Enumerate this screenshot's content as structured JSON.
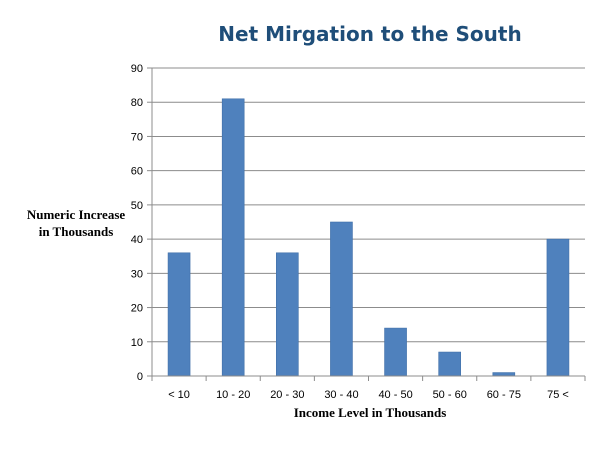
{
  "chart_data": {
    "type": "bar",
    "title": "Net Mirgation to the South",
    "xlabel": "Income Level in Thousands",
    "ylabel": "Numeric Increase in Thousands",
    "ylabel_lines": [
      "Numeric Increase",
      "in Thousands"
    ],
    "categories": [
      "< 10",
      "10 - 20",
      "20 - 30",
      "30 - 40",
      "40 - 50",
      "50 - 60",
      "60 - 75",
      "75 <"
    ],
    "values": [
      36,
      81,
      36,
      45,
      14,
      7,
      1,
      40
    ],
    "ylim": [
      0,
      90
    ],
    "yticks": [
      0,
      10,
      20,
      30,
      40,
      50,
      60,
      70,
      80,
      90
    ],
    "grid": true,
    "legend": "none",
    "colors": {
      "bar": "#4f81bd",
      "bar_edge": "#3f6fa8",
      "grid": "#8c8c8c",
      "axis": "#8c8c8c",
      "title": "#1f4e79"
    }
  }
}
